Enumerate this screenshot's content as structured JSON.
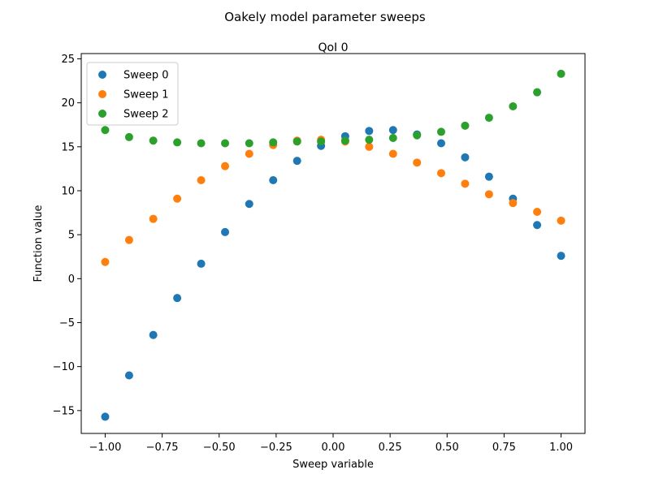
{
  "chart_data": {
    "type": "scatter",
    "suptitle": "Oakely model parameter sweeps",
    "title": "QoI 0",
    "xlabel": "Sweep variable",
    "ylabel": "Function value",
    "xlim": [
      -1.105,
      1.105
    ],
    "ylim": [
      -17.6,
      25.6
    ],
    "xticks": [
      -1.0,
      -0.75,
      -0.5,
      -0.25,
      0.0,
      0.25,
      0.5,
      0.75,
      1.0
    ],
    "xtick_labels": [
      "−1.00",
      "−0.75",
      "−0.50",
      "−0.25",
      "0.00",
      "0.25",
      "0.50",
      "0.75",
      "1.00"
    ],
    "yticks": [
      -15,
      -10,
      -5,
      0,
      5,
      10,
      15,
      20,
      25
    ],
    "ytick_labels": [
      "−15",
      "−10",
      "−5",
      "0",
      "5",
      "10",
      "15",
      "20",
      "25"
    ],
    "grid": false,
    "legend_position": "upper-left",
    "x": [
      -1.0,
      -0.895,
      -0.789,
      -0.684,
      -0.579,
      -0.474,
      -0.368,
      -0.263,
      -0.158,
      -0.053,
      0.053,
      0.158,
      0.263,
      0.368,
      0.474,
      0.579,
      0.684,
      0.789,
      0.895,
      1.0
    ],
    "series": [
      {
        "name": "Sweep 0",
        "color": "#1f77b4",
        "values": [
          -15.7,
          -11.0,
          -6.4,
          -2.2,
          1.7,
          5.3,
          8.5,
          11.2,
          13.4,
          15.1,
          16.2,
          16.8,
          16.9,
          16.4,
          15.4,
          13.8,
          11.6,
          9.1,
          6.1,
          2.6
        ]
      },
      {
        "name": "Sweep 1",
        "color": "#ff7f0e",
        "values": [
          1.9,
          4.4,
          6.8,
          9.1,
          11.2,
          12.8,
          14.2,
          15.2,
          15.7,
          15.8,
          15.6,
          15.0,
          14.2,
          13.2,
          12.0,
          10.8,
          9.6,
          8.6,
          7.6,
          6.6
        ]
      },
      {
        "name": "Sweep 2",
        "color": "#2ca02c",
        "values": [
          16.9,
          16.1,
          15.7,
          15.5,
          15.4,
          15.4,
          15.4,
          15.5,
          15.6,
          15.6,
          15.7,
          15.8,
          16.0,
          16.3,
          16.7,
          17.4,
          18.3,
          19.6,
          21.2,
          23.3
        ]
      }
    ]
  }
}
